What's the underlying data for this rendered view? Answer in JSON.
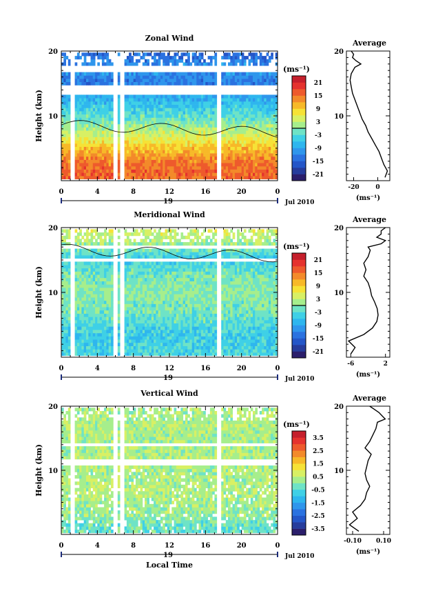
{
  "chart_data": [
    {
      "type": "heatmap",
      "title": "Zonal Wind",
      "ylabel": "Height (km)",
      "yticks": [
        "10",
        "20"
      ],
      "ylim": [
        0,
        20
      ],
      "xlim": [
        0,
        24
      ],
      "xticks": [
        "0",
        "4",
        "8",
        "12",
        "16",
        "20",
        "0"
      ],
      "day_label": "19",
      "month_label": "Jul 2010",
      "colorbar_unit": "(ms⁻¹)",
      "colorbar_range": [
        -24,
        24
      ],
      "colorbar_ticks": [
        "21",
        "15",
        "9",
        "3",
        "-3",
        "-9",
        "-15",
        "-21"
      ],
      "colorbar_zero_contour": 0,
      "profile_means": [
        {
          "h": 1,
          "v": 16
        },
        {
          "h": 3,
          "v": 14
        },
        {
          "h": 5,
          "v": 9
        },
        {
          "h": 7,
          "v": 4
        },
        {
          "h": 9,
          "v": -1
        },
        {
          "h": 11,
          "v": -5
        },
        {
          "h": 13,
          "v": -9
        },
        {
          "h": 15,
          "v": -13
        },
        {
          "h": 17,
          "v": -10
        },
        {
          "h": 19,
          "v": -14
        }
      ],
      "average_panel": {
        "title": "Average",
        "yticks": [
          "10",
          "20"
        ],
        "xticks": [
          "-20",
          "0"
        ],
        "xlim": [
          -26,
          10
        ],
        "xunit": "(ms⁻¹)",
        "profile": [
          {
            "h": 0.5,
            "v": 6
          },
          {
            "h": 1.5,
            "v": 8
          },
          {
            "h": 2.5,
            "v": 5
          },
          {
            "h": 3.5,
            "v": 3
          },
          {
            "h": 4.5,
            "v": 1
          },
          {
            "h": 5.5,
            "v": -2
          },
          {
            "h": 6.5,
            "v": -5
          },
          {
            "h": 7.5,
            "v": -8
          },
          {
            "h": 8.5,
            "v": -10
          },
          {
            "h": 9.5,
            "v": -13
          },
          {
            "h": 10.5,
            "v": -15
          },
          {
            "h": 11.5,
            "v": -17
          },
          {
            "h": 12.5,
            "v": -19
          },
          {
            "h": 13.5,
            "v": -21
          },
          {
            "h": 14.5,
            "v": -22
          },
          {
            "h": 15.5,
            "v": -23
          },
          {
            "h": 16.5,
            "v": -22
          },
          {
            "h": 17.5,
            "v": -19
          },
          {
            "h": 18.0,
            "v": -14
          },
          {
            "h": 18.5,
            "v": -18
          },
          {
            "h": 19.0,
            "v": -21
          },
          {
            "h": 19.5,
            "v": -20
          },
          {
            "h": 20.0,
            "v": -22
          }
        ]
      }
    },
    {
      "type": "heatmap",
      "title": "Meridional Wind",
      "ylabel": "Height (km)",
      "yticks": [
        "10",
        "20"
      ],
      "ylim": [
        0,
        20
      ],
      "xlim": [
        0,
        24
      ],
      "xticks": [
        "0",
        "4",
        "8",
        "12",
        "16",
        "20",
        "0"
      ],
      "day_label": "19",
      "month_label": "Jul 2010",
      "colorbar_unit": "(ms⁻¹)",
      "colorbar_range": [
        -24,
        24
      ],
      "colorbar_ticks": [
        "21",
        "15",
        "9",
        "3",
        "-3",
        "-9",
        "-15",
        "-21"
      ],
      "colorbar_zero_contour": 0,
      "profile_means": [
        {
          "h": 1,
          "v": -4
        },
        {
          "h": 3,
          "v": -5
        },
        {
          "h": 5,
          "v": -3
        },
        {
          "h": 7,
          "v": -1
        },
        {
          "h": 9,
          "v": 0
        },
        {
          "h": 11,
          "v": 0
        },
        {
          "h": 13,
          "v": -2
        },
        {
          "h": 15,
          "v": -5
        },
        {
          "h": 17,
          "v": 1
        },
        {
          "h": 19,
          "v": 4
        }
      ],
      "average_panel": {
        "title": "Average",
        "yticks": [
          "10",
          "20"
        ],
        "xticks": [
          "-6",
          "2"
        ],
        "xlim": [
          -7,
          3
        ],
        "xunit": "(ms⁻¹)",
        "profile": [
          {
            "h": 0.5,
            "v": -6
          },
          {
            "h": 1.5,
            "v": -5
          },
          {
            "h": 2.5,
            "v": -6.5
          },
          {
            "h": 3.5,
            "v": -3
          },
          {
            "h": 4.5,
            "v": -1
          },
          {
            "h": 5.5,
            "v": 0
          },
          {
            "h": 6.5,
            "v": 0.3
          },
          {
            "h": 7.5,
            "v": 0.1
          },
          {
            "h": 8.5,
            "v": -0.5
          },
          {
            "h": 9.5,
            "v": -1.2
          },
          {
            "h": 10.5,
            "v": -1.5
          },
          {
            "h": 11.5,
            "v": -2
          },
          {
            "h": 12.5,
            "v": -3
          },
          {
            "h": 13.5,
            "v": -2.5
          },
          {
            "h": 14.5,
            "v": -3
          },
          {
            "h": 15.5,
            "v": -2
          },
          {
            "h": 16.5,
            "v": -1.5
          },
          {
            "h": 17.0,
            "v": -2
          },
          {
            "h": 17.5,
            "v": 1
          },
          {
            "h": 18.0,
            "v": 2
          },
          {
            "h": 18.5,
            "v": 0
          },
          {
            "h": 19.0,
            "v": 1
          },
          {
            "h": 19.5,
            "v": 1
          },
          {
            "h": 20.0,
            "v": 2
          }
        ]
      }
    },
    {
      "type": "heatmap",
      "title": "Vertical Wind",
      "ylabel": "Height (km)",
      "yticks": [
        "10",
        "20"
      ],
      "ylim": [
        0,
        20
      ],
      "xlim": [
        0,
        24
      ],
      "xticks": [
        "0",
        "4",
        "8",
        "12",
        "16",
        "20",
        "0"
      ],
      "day_label": "19",
      "month_label": "Jul 2010",
      "xlabel": "Local Time",
      "colorbar_unit": "(ms⁻¹)",
      "colorbar_range": [
        -4,
        4
      ],
      "colorbar_ticks": [
        "3.5",
        "2.5",
        "1.5",
        "0.5",
        "-0.5",
        "-1.5",
        "-2.5",
        "-3.5"
      ],
      "profile_means": [
        {
          "h": 1,
          "v": -0.3
        },
        {
          "h": 3,
          "v": 0.2
        },
        {
          "h": 5,
          "v": 0.3
        },
        {
          "h": 7,
          "v": 0.4
        },
        {
          "h": 9,
          "v": 0.3
        },
        {
          "h": 11,
          "v": 0.3
        },
        {
          "h": 13,
          "v": 0.3
        },
        {
          "h": 15,
          "v": 0.3
        },
        {
          "h": 17,
          "v": 0.4
        },
        {
          "h": 19,
          "v": 0.3
        }
      ],
      "average_panel": {
        "title": "Average",
        "yticks": [
          "10",
          "20"
        ],
        "xticks": [
          "-0.10",
          "0.10"
        ],
        "xlim": [
          -0.14,
          0.14
        ],
        "xunit": "(ms⁻¹)",
        "profile": [
          {
            "h": 0.5,
            "v": -0.06
          },
          {
            "h": 1.5,
            "v": -0.12
          },
          {
            "h": 2.5,
            "v": -0.07
          },
          {
            "h": 3.5,
            "v": -0.1
          },
          {
            "h": 4.5,
            "v": -0.05
          },
          {
            "h": 5.5,
            "v": -0.02
          },
          {
            "h": 6.5,
            "v": -0.01
          },
          {
            "h": 7.5,
            "v": 0.01
          },
          {
            "h": 8.5,
            "v": -0.01
          },
          {
            "h": 9.5,
            "v": -0.02
          },
          {
            "h": 10.5,
            "v": -0.01
          },
          {
            "h": 11.5,
            "v": 0.0
          },
          {
            "h": 12.5,
            "v": 0.02
          },
          {
            "h": 13.5,
            "v": -0.02
          },
          {
            "h": 14.5,
            "v": 0.01
          },
          {
            "h": 15.5,
            "v": 0.03
          },
          {
            "h": 16.5,
            "v": 0.05
          },
          {
            "h": 17.5,
            "v": 0.06
          },
          {
            "h": 18.0,
            "v": 0.11
          },
          {
            "h": 18.5,
            "v": 0.09
          },
          {
            "h": 19.0,
            "v": 0.07
          },
          {
            "h": 19.5,
            "v": 0.04
          },
          {
            "h": 20.0,
            "v": 0.01
          }
        ]
      }
    }
  ]
}
